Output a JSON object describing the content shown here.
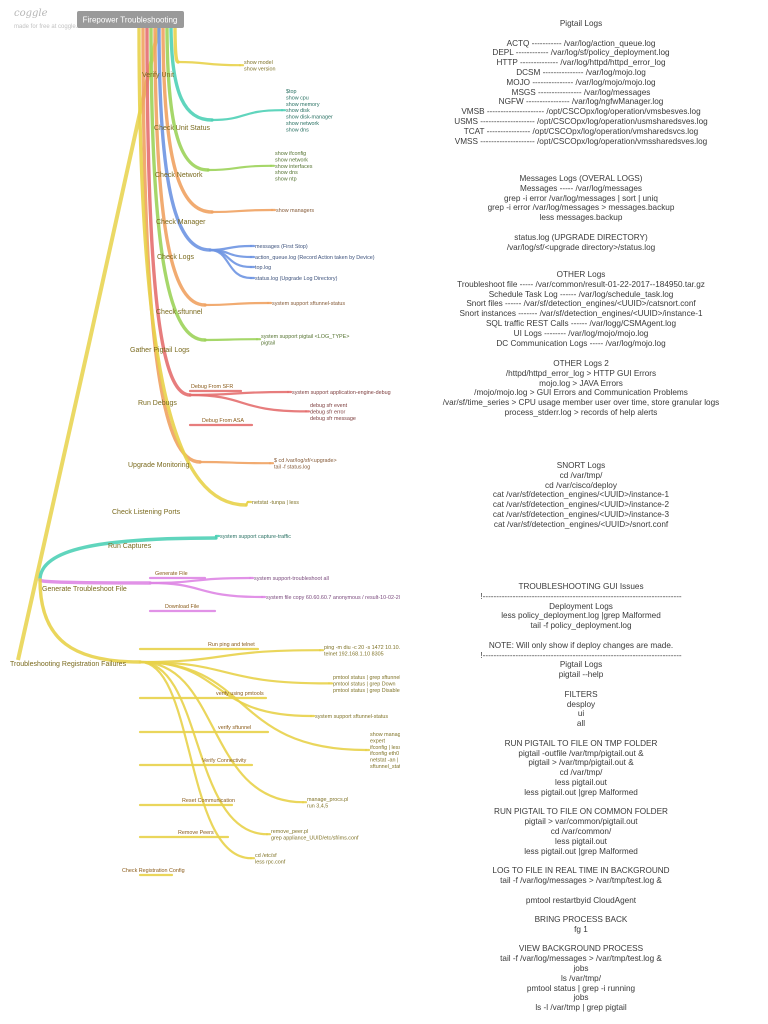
{
  "brand": {
    "name": "coggle",
    "tagline": "made for free at coggle.it"
  },
  "root": {
    "title": "Firepower Troubleshooting"
  },
  "branches": [
    {
      "id": "verify-unit",
      "label": "Verify Unit",
      "color": "#e8d24a",
      "leaves": [
        {
          "text": "show model\nshow version"
        }
      ]
    },
    {
      "id": "check-unit-status",
      "label": "Check Unit Status",
      "color": "#4fd0b6",
      "leaves": [
        {
          "text": "$top\nshow cpu\nshow memory\nshow disk\nshow disk-manager\nshow network\nshow dns"
        }
      ]
    },
    {
      "id": "check-network",
      "label": "Check Network",
      "color": "#9cd35a",
      "leaves": [
        {
          "text": "show ifconfig\nshow network\nshow interfaces\nshow dns\nshow ntp"
        }
      ]
    },
    {
      "id": "check-manager",
      "label": "Check Manager",
      "color": "#f0a262",
      "leaves": [
        {
          "text": "show managers"
        }
      ]
    },
    {
      "id": "check-logs",
      "label": "Check Logs",
      "color": "#6e95e2",
      "leaves": [
        {
          "text": "messages (First Stop)"
        },
        {
          "text": "action_queue.log (Record Action taken by Device)"
        },
        {
          "text": "top.log"
        },
        {
          "text": "status.log (Upgrade Log Directory)"
        }
      ]
    },
    {
      "id": "check-sftunnel",
      "label": "Check sftunnel",
      "color": "#f0a262",
      "leaves": [
        {
          "text": "system support sftunnel-status"
        }
      ]
    },
    {
      "id": "gather-pigtail-logs",
      "label": "Gather Pigtail Logs",
      "color": "#9cd35a",
      "leaves": [
        {
          "text": "system support pigtail <LOG_TYPE>\npigtail"
        }
      ]
    },
    {
      "id": "run-debugs",
      "label": "Run Debugs",
      "color": "#e46f6f",
      "leaves": [
        {
          "text": "Debug From SFR",
          "sub": true
        },
        {
          "text": "system support application-engine-debug"
        },
        {
          "text": "Debug From ASA",
          "sub": true
        },
        {
          "text": "debug sfr event\ndebug sfr error\ndebug sfr message"
        }
      ]
    },
    {
      "id": "upgrade-monitoring",
      "label": "Upgrade Monitoring",
      "color": "#f0a262",
      "leaves": [
        {
          "text": "$ cd /var/log/sf/<upgrade>\ntail -f status.log"
        }
      ]
    },
    {
      "id": "check-listening-ports",
      "label": "Check Listening Ports",
      "color": "#e8d24a",
      "leaves": [
        {
          "text": "netstat -tunpa | less"
        }
      ]
    },
    {
      "id": "run-captures",
      "label": "Run Captures",
      "color": "#4fd0b6",
      "leaves": [
        {
          "text": "system support capture-traffic"
        }
      ]
    },
    {
      "id": "generate-troubleshoot-file",
      "label": "Generate Troubleshoot File",
      "color": "#de86e4",
      "leaves": [
        {
          "text": "Generate File",
          "sub": true
        },
        {
          "text": "system support-troubleshoot all"
        },
        {
          "text": "Download File",
          "sub": true
        },
        {
          "text": "system file copy 60.60.60.7 anonymous / result-10-02-2017--123316.tar.gz"
        }
      ]
    },
    {
      "id": "troubleshooting-registration-failures",
      "label": "Troubleshooting Registration Failures",
      "color": "#e8d24a",
      "leaves": [
        {
          "text": "Run ping and telnet",
          "sub": true
        },
        {
          "text": "ping -m diu -c 20 -s 1472 10.10.10.10\ntelnet 192.168.1.10 8305"
        },
        {
          "text": "pmtool status | grep sftunnel\npmtool status | grep Down\npmtool status | grep Disabled"
        },
        {
          "text": "verify using pmtools",
          "sub": true
        },
        {
          "text": "system support sftunnel-status"
        },
        {
          "text": "verify sftunnel",
          "sub": true
        },
        {
          "text": "show managers\nexpert\nifconfig | less\nifconfig eth0\nnetstat -an | grep 8305\nsftunnel_status.pl"
        },
        {
          "text": "Verify Connectivity",
          "sub": true
        },
        {
          "text": "Reset Communication",
          "sub": true
        },
        {
          "text": "manage_procs.pl\nrun 3,4,5"
        },
        {
          "text": "Remove Peers",
          "sub": true
        },
        {
          "text": "remove_peer.pl\ngrep appliance_UUID/etc/sf/ims.conf"
        },
        {
          "text": "Check Registration Config",
          "sub": true
        },
        {
          "text": "cd /etc/sf\nless rpc.conf"
        }
      ]
    }
  ],
  "notes": [
    {
      "id": "pigtail-logs",
      "text": "Pigtail Logs\n\nACTQ ----------- /var/log/action_queue.log\nDEPL ------------ /var/log/sf/policy_deployment.log\nHTTP -------------- /var/log/httpd/httpd_error_log\nDCSM --------------- /var/log/mojo.log\nMOJO --------------- /var/log/mojo/mojo.log\nMSGS ---------------- /var/log/messages\nNGFW ---------------- /var/log/ngfwManager.log\nVMSB --------------------- /opt/CSCOpx/log/operation/vmsbesves.log\nUSMS -------------------- /opt/CSCOpx/log/operation/usmsharedsves.log\nTCAT ---------------- /opt/CSCOpx/log/operation/vmsharedsvcs.log\nVMSS -------------------- /opt/CSCOpx/log/operation/vmssharedsves.log"
    },
    {
      "id": "messages-logs",
      "text": "Messages Logs (OVERAL LOGS)\nMessages ----- /var/log/messages\ngrep -i error /var/log/messages | sort | uniq\ngrep -i error /var/log/messages > messages.backup\nless messages.backup\n\nstatus.log (UPGRADE DIRECTORY)\n/var/log/sf/<upgrade directory>/status.log"
    },
    {
      "id": "other-logs",
      "text": "OTHER Logs\nTroubleshoot file ----- /var/common/result-01-22-2017--184950.tar.gz\nSchedule Task Log ------ /var/log/schedule_task.log\nSnort files ------ /var/sf/detection_engines/<UUID>/catsnort.conf\nSnort instances ------- /var/sf/detection_engines/<UUID>/instance-1\nSQL traffic REST Calls ------ /var/logg/CSMAgent.log\nUI Logs -------- /var/log/mojo/mojo.log\nDC Communication Logs ----- /var/log/mojo.log"
    },
    {
      "id": "other-logs-2",
      "text": "OTHER Logs 2\n/httpd/httpd_error_log > HTTP GUI Errors\nmojo.log > JAVA Errors\n/mojo/mojo.log > GUI Errors and Communication Problems\n/var/sf/time_series > CPU usage member user over time, store granular logs\nprocess_stderr.log > records of help alerts"
    },
    {
      "id": "snort-logs",
      "text": "SNORT Logs\ncd /var/tmp/\ncd /var/cisco/deploy\ncat /var/sf/detection_engines/<UUID>/instance-1\ncat /var/sf/detection_engines/<UUID>/instance-2\ncat /var/sf/detection_engines/<UUID>/instance-3\ncat /var/sf/detection_engines/<UUID>/snort.conf"
    },
    {
      "id": "gui-issues",
      "text": "TROUBLESHOOTING GUI Issues\n!-------------------------------------------------------------------------\nDeployment Logs\nless policy_deployment.log |grep Malformed\ntail -f policy_deployment.log\n\nNOTE: Will only show if deploy changes are made.\n!-------------------------------------------------------------------------\nPigtail Logs\npigtail --help\n\nFILTERS\ndesploy\nui\nall\n\nRUN PIGTAIL TO FILE ON TMP FOLDER\npigtail -outfile /var/tmp/pigtail.out &\npigtail > /var/tmp/pigtail.out &\ncd /var/tmp/\nless pigtail.out\nless pigtail.out |grep Malformed\n\nRUN PIGTAIL TO FILE ON COMMON FOLDER\npigtail > var/common/pigtail.out\ncd /var/common/\nless pigtail.out\nless pigtail.out |grep Malformed\n\nLOG TO FILE IN REAL TIME IN BACKGROUND\ntail -f /var/log/messages > /var/tmp/test.log &\n\npmtool restartbyid CloudAgent\n\nBRING PROCESS BACK\nfg 1\n\nVIEW BACKGROUND PROCESS\ntail -f /var/log/messages > /var/tmp/test.log &\njobs\nls /var/tmp/\npmtool status | grep -i running\njobs\nls -l /var/tmp | grep pigtail"
    }
  ]
}
